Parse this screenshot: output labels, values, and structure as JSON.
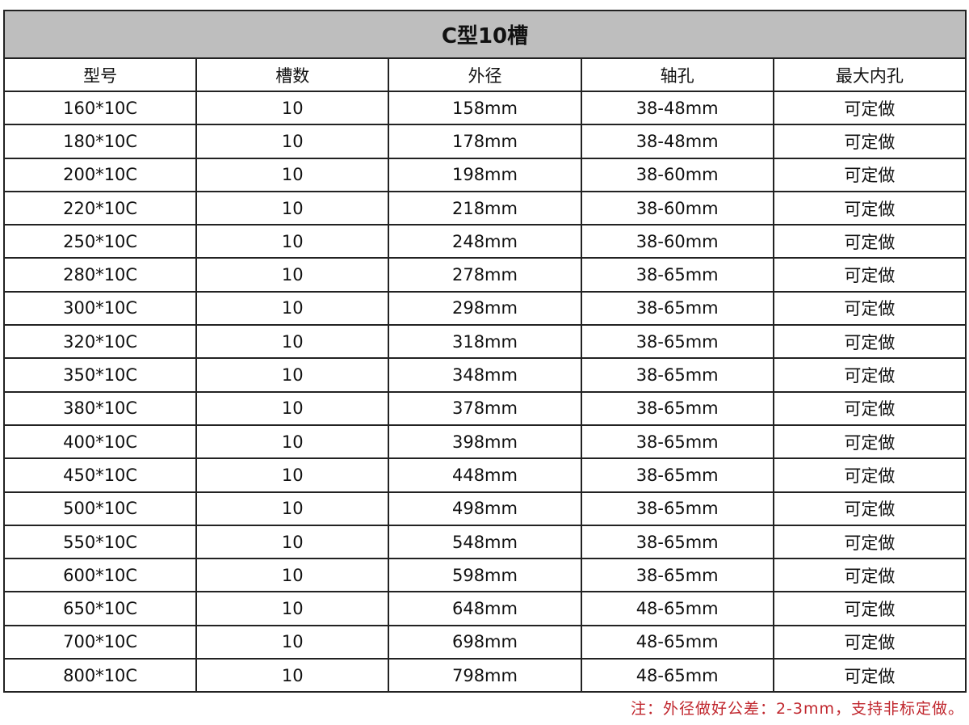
{
  "title": "C型10槽",
  "headers": [
    "型号",
    "槽数",
    "外径",
    "轴孔",
    "最大内孔"
  ],
  "rows": [
    [
      "160*10C",
      "10",
      "158mm",
      "38-48mm",
      "可定做"
    ],
    [
      "180*10C",
      "10",
      "178mm",
      "38-48mm",
      "可定做"
    ],
    [
      "200*10C",
      "10",
      "198mm",
      "38-60mm",
      "可定做"
    ],
    [
      "220*10C",
      "10",
      "218mm",
      "38-60mm",
      "可定做"
    ],
    [
      "250*10C",
      "10",
      "248mm",
      "38-60mm",
      "可定做"
    ],
    [
      "280*10C",
      "10",
      "278mm",
      "38-65mm",
      "可定做"
    ],
    [
      "300*10C",
      "10",
      "298mm",
      "38-65mm",
      "可定做"
    ],
    [
      "320*10C",
      "10",
      "318mm",
      "38-65mm",
      "可定做"
    ],
    [
      "350*10C",
      "10",
      "348mm",
      "38-65mm",
      "可定做"
    ],
    [
      "380*10C",
      "10",
      "378mm",
      "38-65mm",
      "可定做"
    ],
    [
      "400*10C",
      "10",
      "398mm",
      "38-65mm",
      "可定做"
    ],
    [
      "450*10C",
      "10",
      "448mm",
      "38-65mm",
      "可定做"
    ],
    [
      "500*10C",
      "10",
      "498mm",
      "38-65mm",
      "可定做"
    ],
    [
      "550*10C",
      "10",
      "548mm",
      "38-65mm",
      "可定做"
    ],
    [
      "600*10C",
      "10",
      "598mm",
      "38-65mm",
      "可定做"
    ],
    [
      "650*10C",
      "10",
      "648mm",
      "48-65mm",
      "可定做"
    ],
    [
      "700*10C",
      "10",
      "698mm",
      "48-65mm",
      "可定做"
    ],
    [
      "800*10C",
      "10",
      "798mm",
      "48-65mm",
      "可定做"
    ]
  ],
  "note": "注：外径做好公差：2-3mm，支持非标定做。",
  "colors": {
    "title_bg": "#bebebe",
    "note": "#c0262d"
  }
}
